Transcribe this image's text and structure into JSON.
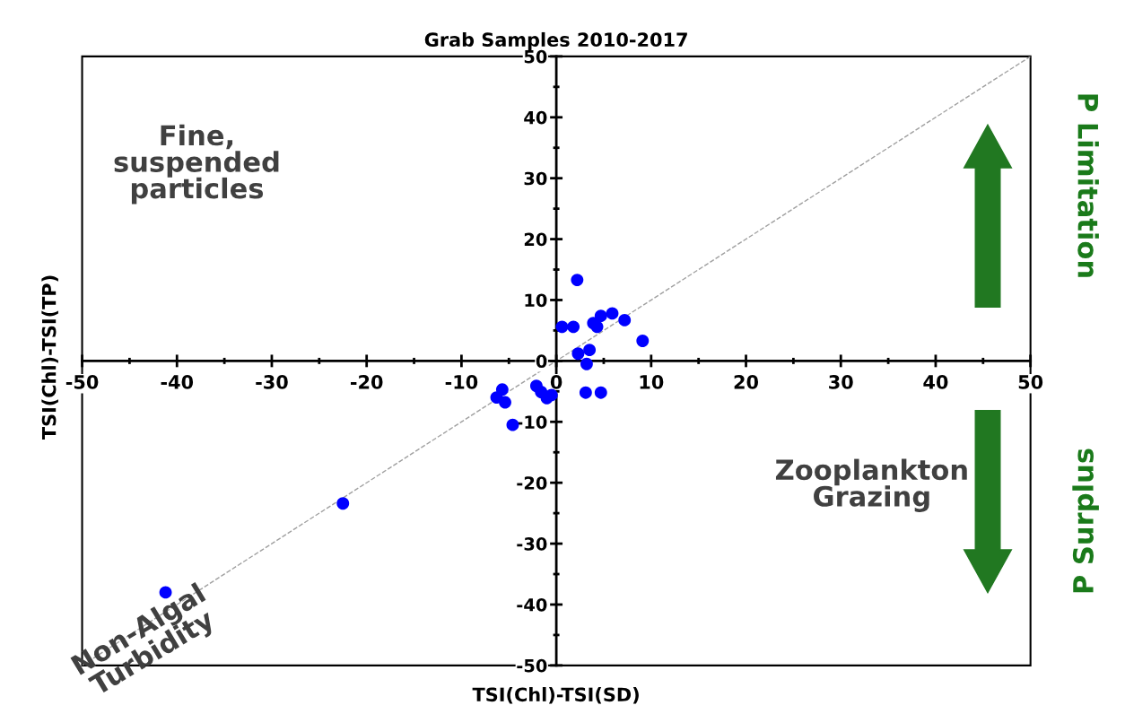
{
  "chart_data": {
    "type": "scatter",
    "title": "Grab Samples 2010-2017",
    "xlabel": "TSI(Chl)-TSI(SD)",
    "ylabel": "TSI(Chl)-TSI(TP)",
    "xlim": [
      -50,
      50
    ],
    "ylim": [
      -50,
      50
    ],
    "xticks": [
      -50,
      -40,
      -30,
      -20,
      -10,
      0,
      10,
      20,
      30,
      40,
      50
    ],
    "yticks": [
      -50,
      -40,
      -30,
      -20,
      -10,
      0,
      10,
      20,
      30,
      40,
      50
    ],
    "grid": false,
    "legend": false,
    "series": [
      {
        "type": "line",
        "color": "#a0a0a0",
        "line_style": "dashed",
        "x": [
          -50,
          50
        ],
        "values": [
          -50,
          50
        ]
      },
      {
        "marker": "circle",
        "color": "#0000ff",
        "x": [
          2.2,
          0.6,
          1.8,
          3.9,
          4.3,
          4.7,
          5.9,
          7.2,
          9.1,
          2.3,
          3.5,
          3.2,
          3.1,
          4.7,
          -2.1,
          -1.6,
          -1.0,
          -0.5,
          -6.3,
          -5.7,
          -5.4,
          -4.6,
          -41.2,
          -22.5
        ],
        "values": [
          13.3,
          5.6,
          5.6,
          6.2,
          5.6,
          7.4,
          7.8,
          6.7,
          3.3,
          1.2,
          1.8,
          -0.5,
          -5.2,
          -5.2,
          -4.1,
          -5.1,
          -6.1,
          -5.6,
          -6.0,
          -4.7,
          -6.8,
          -10.5,
          -38.0,
          -23.4
        ]
      }
    ],
    "annotations": [
      "Fine,\nsuspended\nparticles",
      "Zooplankton\nGrazing",
      "Non-Algal\nTurbidity",
      "P Limitation",
      "P Surplus"
    ]
  }
}
